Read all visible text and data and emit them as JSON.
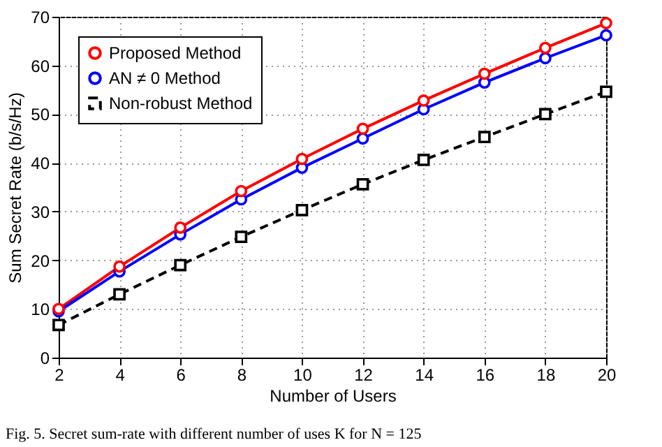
{
  "chart_data": {
    "type": "line",
    "xlabel": "Number of Users",
    "ylabel": "Sum Secret Rate (b/s/Hz)",
    "x": [
      2,
      4,
      6,
      8,
      10,
      12,
      14,
      16,
      18,
      20
    ],
    "series": [
      {
        "name": "Proposed Method",
        "color": "#ff0000",
        "marker": "circle",
        "line_style": "solid",
        "values": [
          10,
          18.7,
          26.7,
          34.2,
          40.8,
          47,
          52.8,
          58.3,
          63.6,
          68.7
        ]
      },
      {
        "name": "AN ≠ 0 Method",
        "color": "#0000ff",
        "marker": "circle",
        "line_style": "solid",
        "values": [
          9.5,
          17.7,
          25.3,
          32.5,
          39,
          45,
          51,
          56.5,
          61.5,
          66.2
        ]
      },
      {
        "name": "Non-robust Method",
        "color": "#000000",
        "marker": "square",
        "line_style": "dashed",
        "values": [
          6.7,
          13,
          19,
          24.8,
          30.3,
          35.6,
          40.6,
          45.3,
          50,
          54.6
        ]
      }
    ],
    "xlim": [
      2,
      20
    ],
    "xticks": [
      2,
      4,
      6,
      8,
      10,
      12,
      14,
      16,
      18,
      20
    ],
    "ylim": [
      0,
      70
    ],
    "yticks": [
      0,
      10,
      20,
      30,
      40,
      50,
      60,
      70
    ],
    "grid": true,
    "legend": "top left",
    "annotations": [
      "Fig. 5.  Secret sum-rate with different number of uses K for N = 125"
    ]
  }
}
